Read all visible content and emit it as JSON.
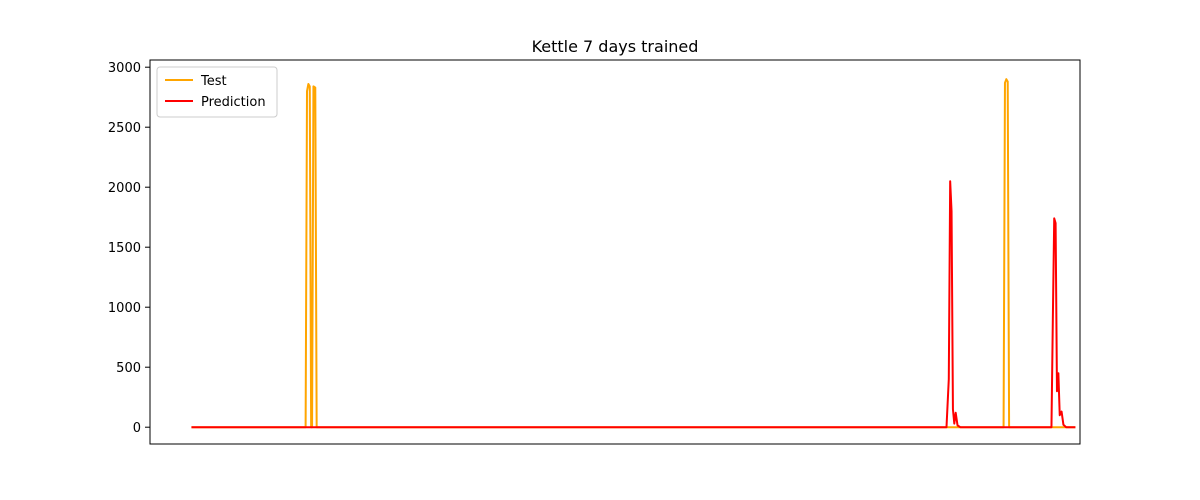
{
  "chart_data": {
    "type": "line",
    "title": "Kettle 7 days trained",
    "xlabel": "",
    "ylabel": "",
    "xlim": [
      -4.5,
      96.5
    ],
    "ylim": [
      -140,
      3060
    ],
    "yticks": [
      0,
      500,
      1000,
      1500,
      2000,
      2500,
      3000
    ],
    "grid": false,
    "legend_position": "top-left",
    "series": [
      {
        "name": "Test",
        "color": "#ffa500",
        "points": [
          [
            0,
            0
          ],
          [
            12.4,
            0
          ],
          [
            12.55,
            2800
          ],
          [
            12.7,
            2860
          ],
          [
            12.85,
            2840
          ],
          [
            13.0,
            0
          ],
          [
            13.1,
            0
          ],
          [
            13.25,
            2840
          ],
          [
            13.45,
            2830
          ],
          [
            13.6,
            0
          ],
          [
            88.2,
            0
          ],
          [
            88.35,
            2870
          ],
          [
            88.5,
            2900
          ],
          [
            88.65,
            2880
          ],
          [
            88.8,
            0
          ],
          [
            96,
            0
          ]
        ]
      },
      {
        "name": "Prediction",
        "color": "#ff0000",
        "points": [
          [
            0,
            0
          ],
          [
            82.0,
            0
          ],
          [
            82.25,
            400
          ],
          [
            82.4,
            2050
          ],
          [
            82.55,
            1800
          ],
          [
            82.7,
            150
          ],
          [
            82.85,
            30
          ],
          [
            83.0,
            120
          ],
          [
            83.2,
            15
          ],
          [
            83.5,
            0
          ],
          [
            93.4,
            0
          ],
          [
            93.55,
            900
          ],
          [
            93.7,
            1740
          ],
          [
            93.85,
            1700
          ],
          [
            94.0,
            300
          ],
          [
            94.15,
            450
          ],
          [
            94.3,
            100
          ],
          [
            94.5,
            130
          ],
          [
            94.7,
            20
          ],
          [
            95.0,
            0
          ],
          [
            96,
            0
          ]
        ]
      }
    ]
  }
}
